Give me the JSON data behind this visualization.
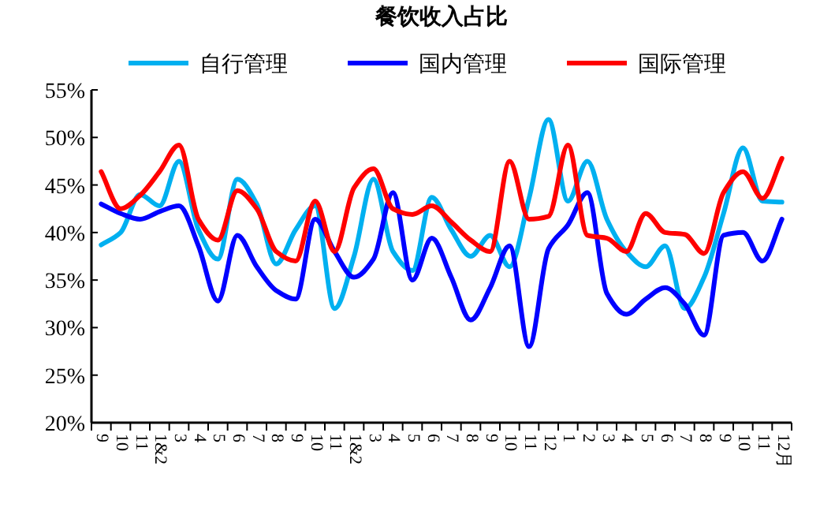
{
  "chart_data": {
    "type": "line",
    "title": "餐饮收入占比",
    "categories": [
      "9",
      "10",
      "11",
      "1&2",
      "3",
      "4",
      "5",
      "6",
      "7",
      "8",
      "9",
      "10",
      "11",
      "1&2",
      "3",
      "4",
      "5",
      "6",
      "7",
      "8",
      "9",
      "10",
      "11",
      "12",
      "1",
      "2",
      "3",
      "4",
      "5",
      "6",
      "7",
      "8",
      "9",
      "10",
      "11",
      "12月"
    ],
    "series": [
      {
        "name": "自行管理",
        "color": "#00b0f0",
        "values": [
          38.7,
          40,
          44,
          42.8,
          47.5,
          40.3,
          37.2,
          45.6,
          43,
          36.7,
          40.3,
          42.8,
          32,
          37.5,
          45.6,
          38,
          36,
          43.7,
          40.3,
          37.5,
          39.7,
          36.4,
          43.6,
          51.9,
          43.3,
          47.5,
          41.4,
          38,
          36.4,
          38.6,
          32,
          35.3,
          42,
          48.9,
          43.3,
          43.2
        ]
      },
      {
        "name": "国内管理",
        "color": "#0000ff",
        "values": [
          43,
          42,
          41.4,
          42.2,
          42.8,
          38.6,
          32.8,
          39.7,
          36.4,
          33.9,
          33,
          41.4,
          38,
          35.3,
          37.2,
          44.2,
          35,
          39.4,
          35.3,
          30.8,
          34.2,
          38.6,
          28,
          38.3,
          40.8,
          44.2,
          33.6,
          31.4,
          33,
          34.2,
          32.5,
          29.2,
          39.7,
          40,
          37,
          41.4
        ]
      },
      {
        "name": "国际管理",
        "color": "#ff0000",
        "values": [
          46.4,
          42.5,
          43.9,
          46.4,
          49.2,
          41.4,
          39.2,
          44.4,
          42.5,
          38,
          37,
          43.3,
          38,
          44.7,
          46.7,
          42.5,
          41.9,
          42.8,
          41.1,
          39.2,
          38,
          47.5,
          41.4,
          41.7,
          49.2,
          39.7,
          39.4,
          38,
          42,
          40,
          39.8,
          37.8,
          44.2,
          46.4,
          43.6,
          47.8
        ]
      }
    ],
    "ylim": [
      20,
      55
    ],
    "yticks": [
      {
        "value": 20,
        "label": "20%"
      },
      {
        "value": 25,
        "label": "25%"
      },
      {
        "value": 30,
        "label": "30%"
      },
      {
        "value": 35,
        "label": "35%"
      },
      {
        "value": 40,
        "label": "40%"
      },
      {
        "value": 45,
        "label": "45%"
      },
      {
        "value": 50,
        "label": "50%"
      },
      {
        "value": 55,
        "label": "55%"
      }
    ],
    "grid": false,
    "legend": "top",
    "marker": "none",
    "line_style": "solid"
  }
}
